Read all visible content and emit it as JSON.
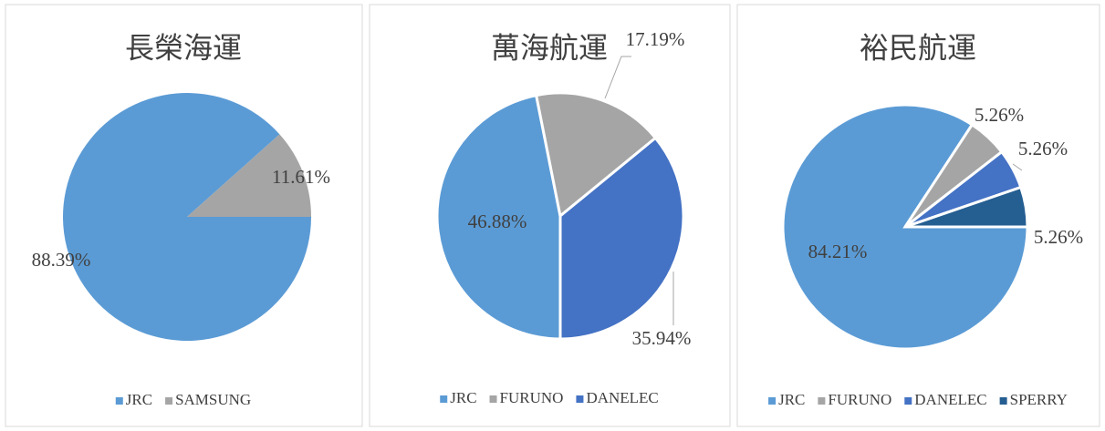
{
  "chart_data": [
    {
      "type": "pie",
      "title": "長榮海運",
      "categories": [
        "JRC",
        "SAMSUNG"
      ],
      "values": [
        88.39,
        11.61
      ],
      "value_labels": [
        "88.39%",
        "11.61%"
      ],
      "colors": [
        "#5b9bd5",
        "#a5a5a5"
      ]
    },
    {
      "type": "pie",
      "title": "萬海航運",
      "categories": [
        "JRC",
        "FURUNO",
        "DANELEC"
      ],
      "values": [
        46.88,
        17.19,
        35.94
      ],
      "value_labels": [
        "46.88%",
        "17.19%",
        "35.94%"
      ],
      "colors": [
        "#5b9bd5",
        "#a5a5a5",
        "#4472c4"
      ]
    },
    {
      "type": "pie",
      "title": "裕民航運",
      "categories": [
        "JRC",
        "FURUNO",
        "DANELEC",
        "SPERRY"
      ],
      "values": [
        84.21,
        5.26,
        5.26,
        5.26
      ],
      "value_labels": [
        "84.21%",
        "5.26%",
        "5.26%",
        "5.26%"
      ],
      "colors": [
        "#5b9bd5",
        "#a5a5a5",
        "#4472c4",
        "#255e91"
      ]
    }
  ]
}
